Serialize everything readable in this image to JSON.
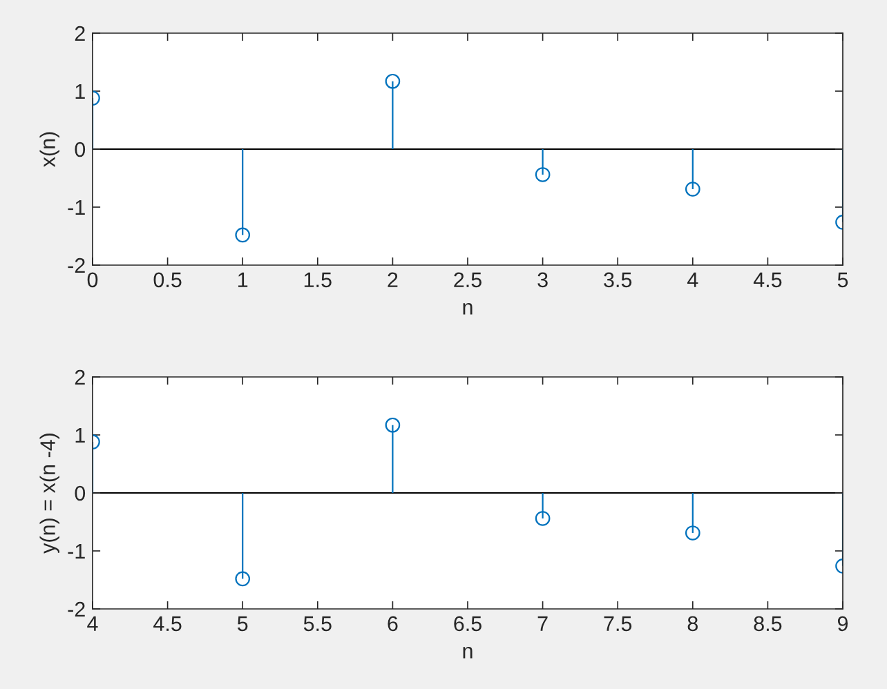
{
  "chart_data": [
    {
      "type": "lollipop",
      "xlabel": "n",
      "ylabel": "x(n)",
      "x": [
        0,
        1,
        2,
        3,
        4,
        5
      ],
      "series": [
        {
          "color": "#0072bd",
          "values": [
            0.88,
            -1.48,
            1.17,
            -0.44,
            -0.69,
            -1.26
          ]
        }
      ],
      "marker": "circle",
      "xlim": [
        0,
        5
      ],
      "xticks": [
        0,
        0.5,
        1,
        1.5,
        2,
        2.5,
        3,
        3.5,
        4,
        4.5,
        5
      ],
      "ylim": [
        -2,
        2
      ],
      "yticks": [
        -2,
        -1,
        0,
        1,
        2
      ],
      "grid": false,
      "ref_lines": [
        {
          "axis": "y",
          "value": 0,
          "color": "#000000"
        }
      ]
    },
    {
      "type": "lollipop",
      "xlabel": "n",
      "ylabel": "y(n) = x(n -4)",
      "x": [
        4,
        5,
        6,
        7,
        8,
        9
      ],
      "series": [
        {
          "color": "#0072bd",
          "values": [
            0.88,
            -1.48,
            1.17,
            -0.44,
            -0.69,
            -1.26
          ]
        }
      ],
      "marker": "circle",
      "xlim": [
        4,
        9
      ],
      "xticks": [
        4,
        4.5,
        5,
        5.5,
        6,
        6.5,
        7,
        7.5,
        8,
        8.5,
        9
      ],
      "ylim": [
        -2,
        2
      ],
      "yticks": [
        -2,
        -1,
        0,
        1,
        2
      ],
      "grid": false,
      "ref_lines": [
        {
          "axis": "y",
          "value": 0,
          "color": "#000000"
        }
      ]
    }
  ]
}
